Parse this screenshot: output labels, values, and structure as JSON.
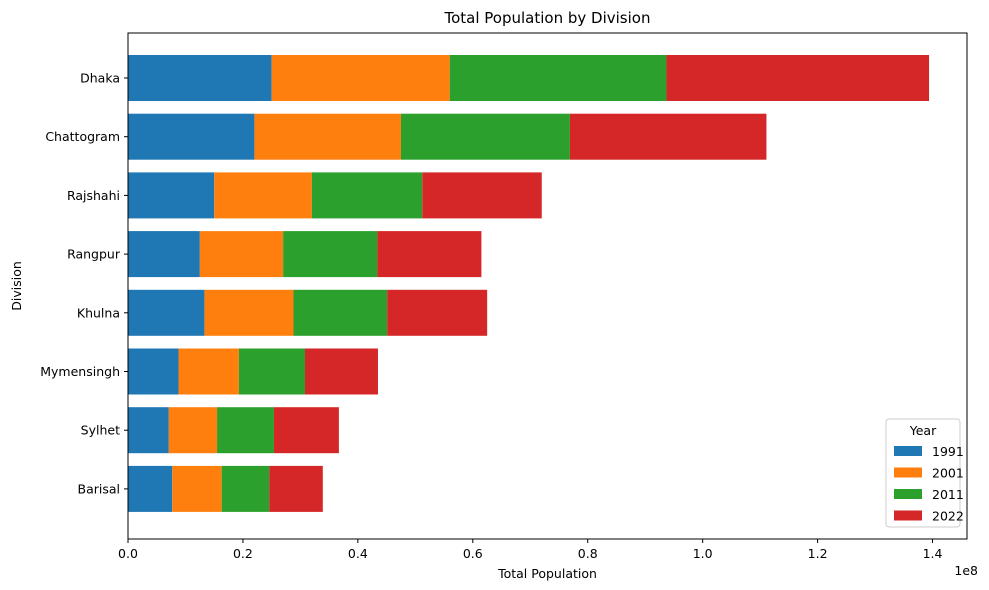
{
  "chart_data": {
    "type": "bar",
    "orientation": "horizontal",
    "stacked": true,
    "title": "Total Population by Division",
    "xlabel": "Total Population",
    "ylabel": "Division",
    "x_offset_label": "1e8",
    "xlim": [
      0,
      146000000.0
    ],
    "xticks": [
      0,
      20000000.0,
      40000000.0,
      60000000.0,
      80000000.0,
      100000000.0,
      120000000.0,
      140000000.0
    ],
    "xtick_labels": [
      "0.0",
      "0.2",
      "0.4",
      "0.6",
      "0.8",
      "1.0",
      "1.2",
      "1.4"
    ],
    "grid": false,
    "legend": {
      "title": "Year",
      "position": "bottom-right"
    },
    "categories": [
      "Dhaka",
      "Chattogram",
      "Rajshahi",
      "Rangpur",
      "Khulna",
      "Mymensingh",
      "Sylhet",
      "Barisal"
    ],
    "series": [
      {
        "name": "1991",
        "color": "#1f77b4",
        "values": [
          25000000,
          22000000,
          15000000,
          12500000,
          13300000,
          8800000,
          7100000,
          7700000
        ]
      },
      {
        "name": "2001",
        "color": "#ff7f0e",
        "values": [
          31000000,
          25500000,
          17000000,
          14500000,
          15500000,
          10500000,
          8400000,
          8600000
        ]
      },
      {
        "name": "2011",
        "color": "#2ca02c",
        "values": [
          37700000,
          29400000,
          19200000,
          16400000,
          16300000,
          11500000,
          9900000,
          8300000
        ]
      },
      {
        "name": "2022",
        "color": "#d62728",
        "values": [
          45700000,
          34200000,
          20800000,
          18100000,
          17400000,
          12700000,
          11300000,
          9300000
        ]
      }
    ]
  }
}
